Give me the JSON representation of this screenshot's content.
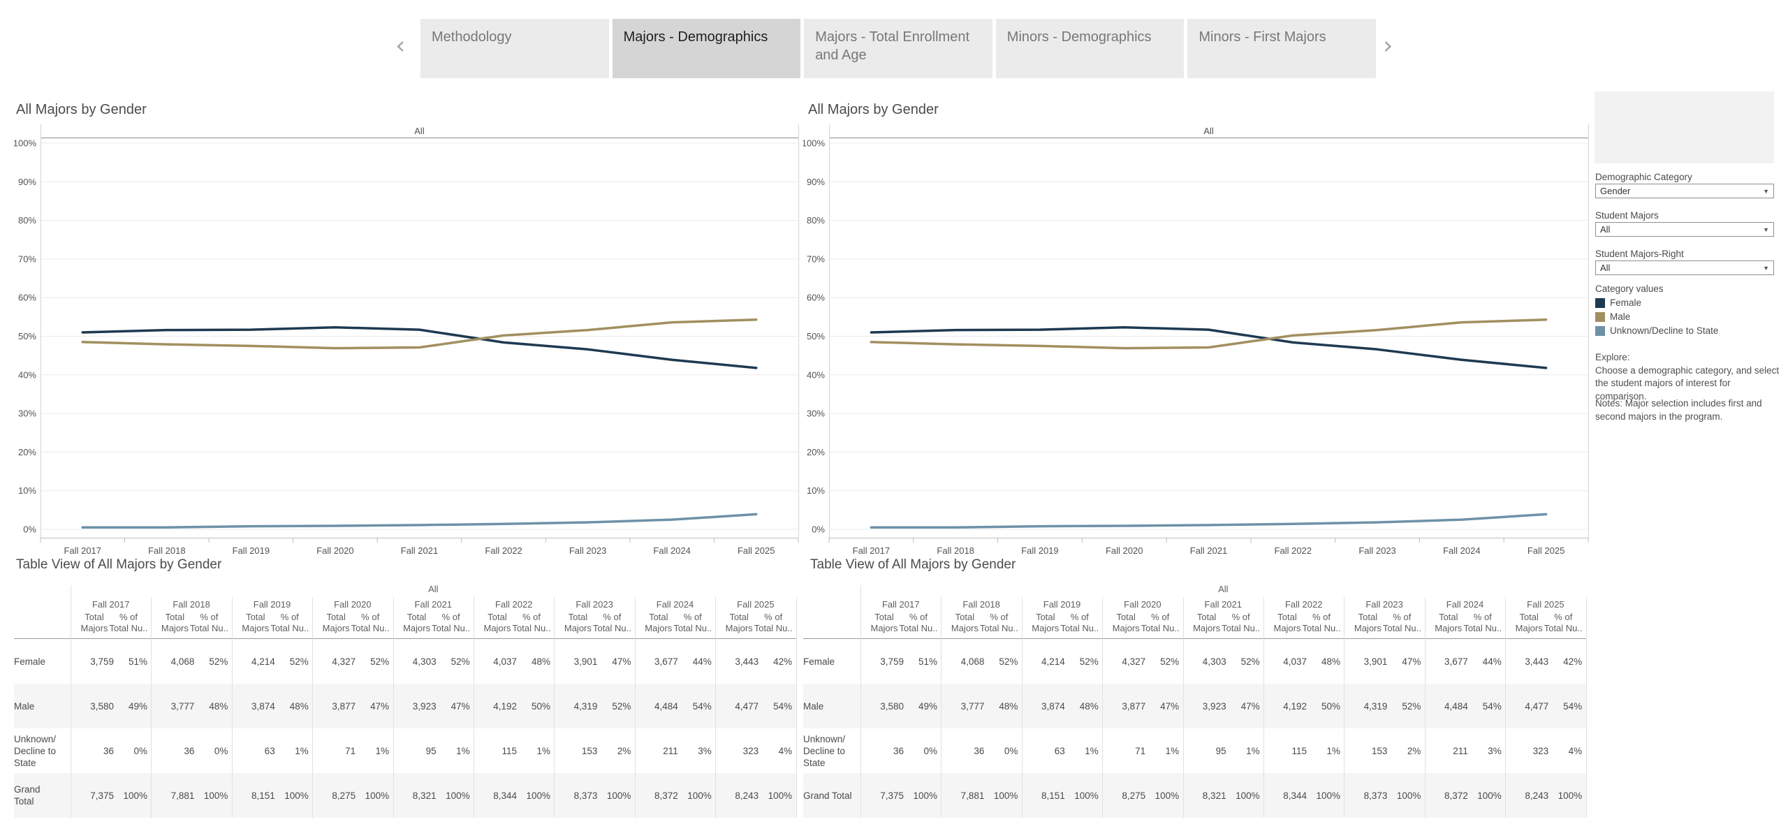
{
  "tabs": {
    "prev_label": "‹",
    "next_label": "›",
    "items": [
      {
        "label": "Methodology",
        "selected": false
      },
      {
        "label": "Majors - Demographics",
        "selected": true
      },
      {
        "label": "Majors - Total Enrollment and Age",
        "selected": false
      },
      {
        "label": "Minors - Demographics",
        "selected": false
      },
      {
        "label": "Minors - First Majors",
        "selected": false
      }
    ]
  },
  "colors": {
    "female": "#1e3a52",
    "male": "#a28f60",
    "unknown": "#6e91a7",
    "tab_selected_bg": "#d5d5d5",
    "tab_bg": "#ebebeb"
  },
  "chart_data": [
    {
      "type": "line",
      "title": "All Majors by Gender",
      "pane_header": "All",
      "x": [
        "Fall 2017",
        "Fall 2018",
        "Fall 2019",
        "Fall 2020",
        "Fall 2021",
        "Fall 2022",
        "Fall 2023",
        "Fall 2024",
        "Fall 2025"
      ],
      "ylabel_ticks": [
        "0%",
        "10%",
        "20%",
        "30%",
        "40%",
        "50%",
        "60%",
        "70%",
        "80%",
        "90%",
        "100%"
      ],
      "ylim": [
        0,
        100
      ],
      "grid": true,
      "series": [
        {
          "name": "Female",
          "color": "#1e3a52",
          "values": [
            51.0,
            51.6,
            51.7,
            52.3,
            51.7,
            48.4,
            46.6,
            43.9,
            41.8
          ]
        },
        {
          "name": "Male",
          "color": "#a28f60",
          "values": [
            48.5,
            47.9,
            47.5,
            46.9,
            47.1,
            50.2,
            51.6,
            53.6,
            54.3
          ]
        },
        {
          "name": "Unknown/Decline to State",
          "color": "#6e91a7",
          "values": [
            0.5,
            0.5,
            0.8,
            0.9,
            1.1,
            1.4,
            1.8,
            2.5,
            3.9
          ]
        }
      ]
    },
    {
      "type": "line",
      "title": "All Majors by Gender",
      "pane_header": "All",
      "x": [
        "Fall 2017",
        "Fall 2018",
        "Fall 2019",
        "Fall 2020",
        "Fall 2021",
        "Fall 2022",
        "Fall 2023",
        "Fall 2024",
        "Fall 2025"
      ],
      "ylabel_ticks": [
        "0%",
        "10%",
        "20%",
        "30%",
        "40%",
        "50%",
        "60%",
        "70%",
        "80%",
        "90%",
        "100%"
      ],
      "ylim": [
        0,
        100
      ],
      "grid": true,
      "series": [
        {
          "name": "Female",
          "color": "#1e3a52",
          "values": [
            51.0,
            51.6,
            51.7,
            52.3,
            51.7,
            48.4,
            46.6,
            43.9,
            41.8
          ]
        },
        {
          "name": "Male",
          "color": "#a28f60",
          "values": [
            48.5,
            47.9,
            47.5,
            46.9,
            47.1,
            50.2,
            51.6,
            53.6,
            54.3
          ]
        },
        {
          "name": "Unknown/Decline to State",
          "color": "#6e91a7",
          "values": [
            0.5,
            0.5,
            0.8,
            0.9,
            1.1,
            1.4,
            1.8,
            2.5,
            3.9
          ]
        }
      ]
    }
  ],
  "table_view": {
    "title": "Table View of All Majors by Gender",
    "span_header": "All",
    "years": [
      "Fall 2017",
      "Fall 2018",
      "Fall 2019",
      "Fall 2020",
      "Fall 2021",
      "Fall 2022",
      "Fall 2023",
      "Fall 2024",
      "Fall 2025"
    ],
    "sub_columns": [
      [
        "Total",
        "Majors"
      ],
      [
        "% of",
        "Total Nu.."
      ]
    ],
    "rows": [
      {
        "label": "Female",
        "shaded": false,
        "counts": [
          "3,759",
          "4,068",
          "4,214",
          "4,327",
          "4,303",
          "4,037",
          "3,901",
          "3,677",
          "3,443"
        ],
        "pcts": [
          "51%",
          "52%",
          "52%",
          "52%",
          "52%",
          "48%",
          "47%",
          "44%",
          "42%"
        ]
      },
      {
        "label": "Male",
        "shaded": true,
        "counts": [
          "3,580",
          "3,777",
          "3,874",
          "3,877",
          "3,923",
          "4,192",
          "4,319",
          "4,484",
          "4,477"
        ],
        "pcts": [
          "49%",
          "48%",
          "48%",
          "47%",
          "47%",
          "50%",
          "52%",
          "54%",
          "54%"
        ]
      },
      {
        "label": "Unknown/\nDecline to State",
        "shaded": false,
        "counts": [
          "36",
          "36",
          "63",
          "71",
          "95",
          "115",
          "153",
          "211",
          "323"
        ],
        "pcts": [
          "0%",
          "0%",
          "1%",
          "1%",
          "1%",
          "1%",
          "2%",
          "3%",
          "4%"
        ]
      },
      {
        "label": "Grand Total",
        "shaded": true,
        "counts": [
          "7,375",
          "7,881",
          "8,151",
          "8,275",
          "8,321",
          "8,344",
          "8,373",
          "8,372",
          "8,243"
        ],
        "pcts": [
          "100%",
          "100%",
          "100%",
          "100%",
          "100%",
          "100%",
          "100%",
          "100%",
          "100%"
        ]
      }
    ]
  },
  "sidebar": {
    "filters": [
      {
        "label": "Demographic Category",
        "value": "Gender"
      },
      {
        "label": "Student Majors",
        "value": "All"
      },
      {
        "label": "Student Majors-Right",
        "value": "All"
      }
    ],
    "legend": {
      "title": "Category values",
      "items": [
        {
          "label": "Female",
          "color": "#1e3a52"
        },
        {
          "label": "Male",
          "color": "#a28f60"
        },
        {
          "label": "Unknown/Decline to State",
          "color": "#6e91a7"
        }
      ]
    },
    "explore_title": "Explore:",
    "explore_body": "Choose a demographic category, and select the student majors of interest for comparison.",
    "notes": "Notes: Major selection includes first and second majors in the program."
  }
}
